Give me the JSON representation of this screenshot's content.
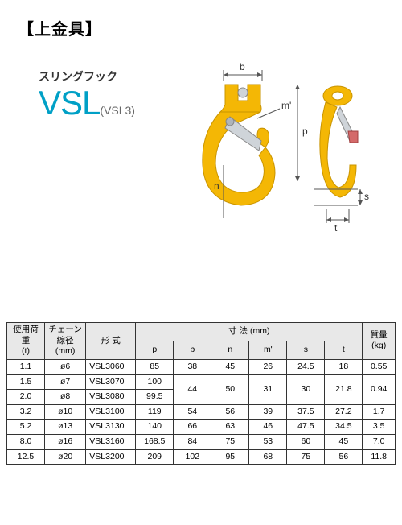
{
  "header": "【上金具】",
  "product": {
    "name_jp": "スリングフック",
    "model": "VSL",
    "sub": "(VSL3)"
  },
  "diagram": {
    "labels": [
      "b",
      "m'",
      "p",
      "n",
      "s",
      "t"
    ],
    "hook_color": "#f4b705",
    "latch_color": "#cfd4d9",
    "line_color": "#555555"
  },
  "table": {
    "headers": {
      "load": "使用荷重\n(t)",
      "chain": "チェーン線径\n(mm)",
      "model": "形 式",
      "dim_group": "寸 法 (mm)",
      "dims": [
        "p",
        "b",
        "n",
        "m'",
        "s",
        "t"
      ],
      "mass": "質量\n(kg)"
    },
    "rows": [
      {
        "load": "1.1",
        "chain": "ø6",
        "model": "VSL3060",
        "p": "85",
        "b": "38",
        "n": "45",
        "m": "26",
        "s": "24.5",
        "t": "18",
        "mass": "0.55"
      },
      {
        "load": "1.5",
        "chain": "ø7",
        "model": "VSL3070",
        "p": "100",
        "b": null,
        "n": null,
        "m": null,
        "s": null,
        "t": null,
        "mass": null
      },
      {
        "load": "2.0",
        "chain": "ø8",
        "model": "VSL3080",
        "p": "99.5",
        "b": "44",
        "n": "50",
        "m": "31",
        "s": "30",
        "t": "21.8",
        "mass": "0.94"
      },
      {
        "load": "3.2",
        "chain": "ø10",
        "model": "VSL3100",
        "p": "119",
        "b": "54",
        "n": "56",
        "m": "39",
        "s": "37.5",
        "t": "27.2",
        "mass": "1.7"
      },
      {
        "load": "5.2",
        "chain": "ø13",
        "model": "VSL3130",
        "p": "140",
        "b": "66",
        "n": "63",
        "m": "46",
        "s": "47.5",
        "t": "34.5",
        "mass": "3.5"
      },
      {
        "load": "8.0",
        "chain": "ø16",
        "model": "VSL3160",
        "p": "168.5",
        "b": "84",
        "n": "75",
        "m": "53",
        "s": "60",
        "t": "45",
        "mass": "7.0"
      },
      {
        "load": "12.5",
        "chain": "ø20",
        "model": "VSL3200",
        "p": "209",
        "b": "102",
        "n": "95",
        "m": "68",
        "s": "75",
        "t": "56",
        "mass": "11.8"
      }
    ]
  }
}
